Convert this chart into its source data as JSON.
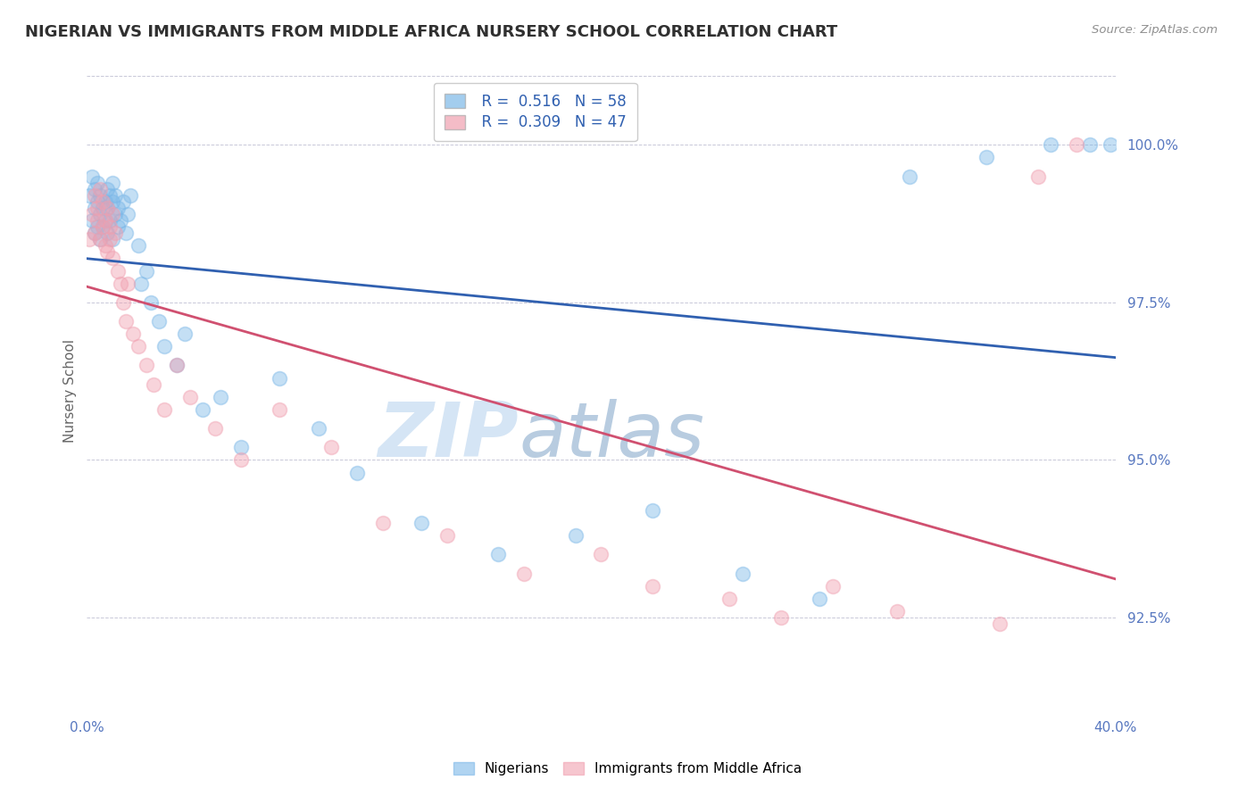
{
  "title": "NIGERIAN VS IMMIGRANTS FROM MIDDLE AFRICA NURSERY SCHOOL CORRELATION CHART",
  "source": "Source: ZipAtlas.com",
  "ylabel": "Nursery School",
  "xlim": [
    0.0,
    40.0
  ],
  "ylim": [
    91.0,
    101.2
  ],
  "yticks": [
    92.5,
    95.0,
    97.5,
    100.0
  ],
  "ytick_labels": [
    "92.5%",
    "95.0%",
    "97.5%",
    "100.0%"
  ],
  "legend_blue_r": "R =  0.516",
  "legend_blue_n": "N = 58",
  "legend_pink_r": "R =  0.309",
  "legend_pink_n": "N = 47",
  "blue_color": "#7CB8E8",
  "pink_color": "#F0A0B0",
  "line_blue": "#3060B0",
  "line_pink": "#D05070",
  "background": "#FFFFFF",
  "grid_color": "#C8C8D8",
  "title_color": "#303030",
  "axis_label_color": "#5878C0",
  "watermark_color": "#D5E5F5",
  "nigerians_x": [
    0.1,
    0.2,
    0.2,
    0.3,
    0.3,
    0.3,
    0.4,
    0.4,
    0.4,
    0.5,
    0.5,
    0.5,
    0.6,
    0.6,
    0.7,
    0.7,
    0.8,
    0.8,
    0.8,
    0.9,
    0.9,
    1.0,
    1.0,
    1.0,
    1.1,
    1.1,
    1.2,
    1.2,
    1.3,
    1.4,
    1.5,
    1.6,
    1.7,
    2.0,
    2.1,
    2.3,
    2.5,
    2.8,
    3.0,
    3.5,
    3.8,
    4.5,
    5.2,
    6.0,
    7.5,
    9.0,
    10.5,
    13.0,
    16.0,
    19.0,
    22.0,
    25.5,
    28.5,
    32.0,
    35.0,
    37.5,
    39.0,
    39.8
  ],
  "nigerians_y": [
    99.2,
    98.8,
    99.5,
    99.3,
    98.6,
    99.0,
    99.1,
    98.7,
    99.4,
    98.9,
    99.2,
    98.5,
    99.0,
    98.7,
    99.1,
    98.8,
    99.3,
    98.6,
    99.0,
    99.2,
    98.8,
    99.1,
    98.5,
    99.4,
    98.9,
    99.2,
    98.7,
    99.0,
    98.8,
    99.1,
    98.6,
    98.9,
    99.2,
    98.4,
    97.8,
    98.0,
    97.5,
    97.2,
    96.8,
    96.5,
    97.0,
    95.8,
    96.0,
    95.2,
    96.3,
    95.5,
    94.8,
    94.0,
    93.5,
    93.8,
    94.2,
    93.2,
    92.8,
    99.5,
    99.8,
    100.0,
    100.0,
    100.0
  ],
  "immigrants_x": [
    0.1,
    0.2,
    0.3,
    0.3,
    0.4,
    0.4,
    0.5,
    0.5,
    0.6,
    0.6,
    0.7,
    0.7,
    0.8,
    0.8,
    0.9,
    0.9,
    1.0,
    1.0,
    1.1,
    1.2,
    1.3,
    1.4,
    1.5,
    1.6,
    1.8,
    2.0,
    2.3,
    2.6,
    3.0,
    3.5,
    4.0,
    5.0,
    6.0,
    7.5,
    9.5,
    11.5,
    14.0,
    17.0,
    20.0,
    22.0,
    25.0,
    27.0,
    29.0,
    31.5,
    35.5,
    37.0,
    38.5
  ],
  "immigrants_y": [
    98.5,
    98.9,
    99.2,
    98.6,
    98.8,
    99.0,
    99.3,
    98.5,
    98.7,
    99.1,
    98.4,
    98.8,
    99.0,
    98.3,
    98.7,
    98.5,
    98.9,
    98.2,
    98.6,
    98.0,
    97.8,
    97.5,
    97.2,
    97.8,
    97.0,
    96.8,
    96.5,
    96.2,
    95.8,
    96.5,
    96.0,
    95.5,
    95.0,
    95.8,
    95.2,
    94.0,
    93.8,
    93.2,
    93.5,
    93.0,
    92.8,
    92.5,
    93.0,
    92.6,
    92.4,
    99.5,
    100.0
  ]
}
